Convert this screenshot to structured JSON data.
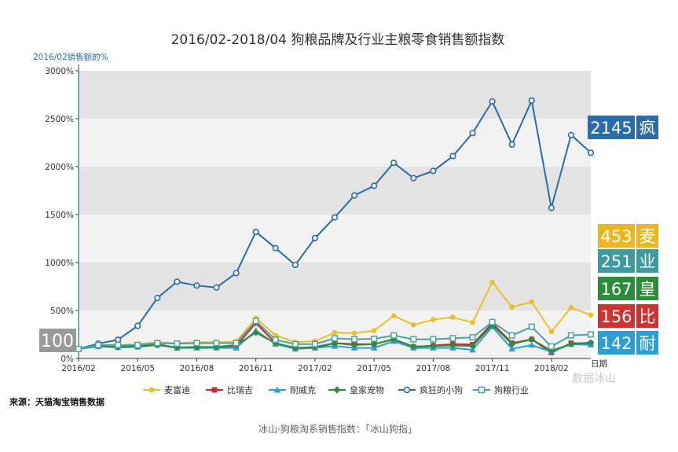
{
  "chart_data": {
    "type": "line",
    "title": "2016/02-2018/04 狗粮品牌及行业主粮零食销售额指数",
    "ylabel": "2016/02销售额的%",
    "xlabel": "日期",
    "ylim": [
      0,
      3000
    ],
    "yticks": [
      "0%",
      "500%",
      "1000%",
      "1500%",
      "2000%",
      "2500%",
      "3000%"
    ],
    "ytick_values": [
      0,
      500,
      1000,
      1500,
      2000,
      2500,
      3000
    ],
    "x": [
      "2016/02",
      "2016/03",
      "2016/04",
      "2016/05",
      "2016/06",
      "2016/07",
      "2016/08",
      "2016/09",
      "2016/10",
      "2016/11",
      "2016/12",
      "2017/01",
      "2017/02",
      "2017/03",
      "2017/04",
      "2017/05",
      "2017/06",
      "2017/07",
      "2017/08",
      "2017/09",
      "2017/10",
      "2017/11",
      "2017/12",
      "2018/01",
      "2018/02",
      "2018/03",
      "2018/04"
    ],
    "xticks": [
      "2016/02",
      "2016/05",
      "2016/08",
      "2016/11",
      "2017/02",
      "2017/05",
      "2017/08",
      "2017/11",
      "2018/02"
    ],
    "xtick_indices": [
      0,
      3,
      6,
      9,
      12,
      15,
      18,
      21,
      24
    ],
    "grid": "horizontal bands",
    "legend_position": "bottom",
    "series": [
      {
        "name": "麦富迪",
        "color": "#e8c12a",
        "marker": "circle-filled",
        "values": [
          100,
          140,
          135,
          150,
          170,
          160,
          170,
          170,
          175,
          420,
          240,
          170,
          180,
          270,
          265,
          290,
          445,
          350,
          405,
          430,
          375,
          795,
          535,
          590,
          280,
          530,
          453
        ]
      },
      {
        "name": "比瑞吉",
        "color": "#cc2a2a",
        "marker": "square-filled",
        "values": [
          100,
          130,
          120,
          130,
          150,
          110,
          115,
          120,
          130,
          370,
          160,
          100,
          110,
          160,
          150,
          150,
          200,
          120,
          135,
          150,
          145,
          370,
          160,
          200,
          60,
          160,
          156
        ]
      },
      {
        "name": "耐威克",
        "color": "#2a9fd6",
        "marker": "triangle-filled",
        "values": [
          100,
          125,
          115,
          120,
          140,
          110,
          110,
          110,
          110,
          290,
          150,
          100,
          110,
          130,
          110,
          110,
          180,
          110,
          110,
          110,
          90,
          330,
          100,
          140,
          70,
          150,
          142
        ]
      },
      {
        "name": "皇家宠物",
        "color": "#2d8c3c",
        "marker": "diamond-filled",
        "values": [
          100,
          130,
          120,
          125,
          140,
          115,
          120,
          120,
          140,
          270,
          160,
          110,
          120,
          160,
          140,
          150,
          200,
          125,
          130,
          135,
          130,
          350,
          150,
          200,
          80,
          150,
          167
        ]
      },
      {
        "name": "疯狂的小狗",
        "color": "#2a6ca8",
        "marker": "circle-open",
        "values": [
          100,
          155,
          195,
          340,
          630,
          800,
          760,
          740,
          890,
          1320,
          1150,
          975,
          1255,
          1470,
          1700,
          1800,
          2040,
          1880,
          1955,
          2110,
          2350,
          2680,
          2230,
          2690,
          1570,
          2330,
          2145
        ]
      },
      {
        "name": "狗粮行业",
        "color": "#4aa3a3",
        "marker": "square-open",
        "values": [
          100,
          140,
          140,
          140,
          160,
          155,
          160,
          160,
          160,
          390,
          195,
          150,
          150,
          210,
          200,
          205,
          240,
          200,
          200,
          210,
          220,
          380,
          240,
          330,
          125,
          240,
          251
        ]
      }
    ],
    "end_labels": [
      {
        "value": "2145",
        "char": "疯",
        "color": "#2a6ca8"
      },
      {
        "value": "453",
        "char": "麦",
        "color": "#e8b81e"
      },
      {
        "value": "251",
        "char": "业",
        "color": "#3a9ba0"
      },
      {
        "value": "167",
        "char": "皇",
        "color": "#2d8c3c"
      },
      {
        "value": "156",
        "char": "比",
        "color": "#d03030"
      },
      {
        "value": "142",
        "char": "耐",
        "color": "#2a9fd6"
      }
    ],
    "start_label": {
      "value": "100",
      "color": "#999999"
    }
  },
  "source": "来源：天猫淘宝销售数据",
  "caption": "冰山·狗粮淘系销售指数：「冰山狗指」",
  "watermark": "数据冰山"
}
